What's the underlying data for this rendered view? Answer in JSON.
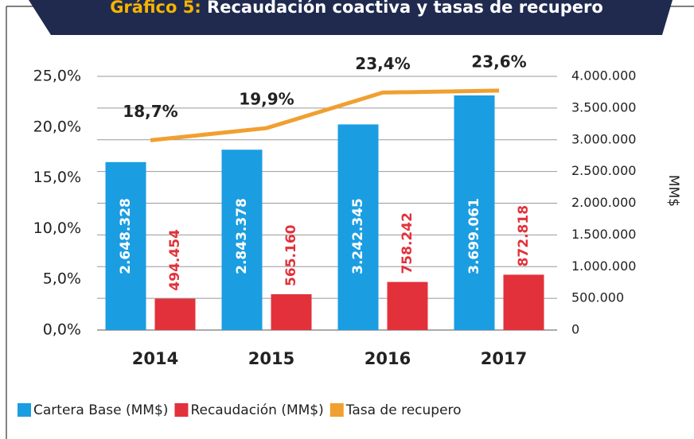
{
  "chart_data": {
    "type": "bar",
    "title_label": "Gráfico 5:",
    "title": "Recaudación coactiva y tasas de recupero",
    "y2_label": "MM$",
    "categories": [
      "2014",
      "2015",
      "2016",
      "2017"
    ],
    "series": [
      {
        "name": "Cartera Base (MM$)",
        "type": "bar",
        "axis": "y2",
        "color": "#1b9de2",
        "values": [
          2648328,
          2843378,
          3242345,
          3699061
        ],
        "value_labels": [
          "2.648.328",
          "2.843.378",
          "3.242.345",
          "3.699.061"
        ]
      },
      {
        "name": "Recaudación (MM$)",
        "type": "bar",
        "axis": "y2",
        "color": "#e2313b",
        "values": [
          494454,
          565160,
          758242,
          872818
        ],
        "value_labels": [
          "494.454",
          "565.160",
          "758.242",
          "872.818"
        ]
      },
      {
        "name": "Tasa de recupero",
        "type": "line",
        "axis": "y",
        "color": "#f0a030",
        "values": [
          18.7,
          19.9,
          23.4,
          23.6
        ],
        "value_labels": [
          "18,7%",
          "19,9%",
          "23,4%",
          "23,6%"
        ]
      }
    ],
    "ylim": [
      0,
      25
    ],
    "yticks": [
      {
        "value": 0,
        "label": "0,0%"
      },
      {
        "value": 5,
        "label": "5,0%"
      },
      {
        "value": 10,
        "label": "10,0%"
      },
      {
        "value": 15,
        "label": "15,0%"
      },
      {
        "value": 20,
        "label": "20,0%"
      },
      {
        "value": 25,
        "label": "25,0%"
      }
    ],
    "y2lim": [
      0,
      4000000
    ],
    "y2ticks": [
      0,
      {
        "value": 500000,
        "label": "500.000"
      },
      {
        "value": 1000000,
        "label": "1.000.000"
      },
      {
        "value": 1500000,
        "label": "1.500.000"
      },
      {
        "value": 2000000,
        "label": "2.000.000"
      },
      {
        "value": 2500000,
        "label": "2.500.000"
      },
      {
        "value": 3000000,
        "label": "3.000.000"
      },
      {
        "value": 3500000,
        "label": "3.500.000"
      },
      {
        "value": 4000000,
        "label": "4.000.000"
      }
    ],
    "grid": true
  }
}
